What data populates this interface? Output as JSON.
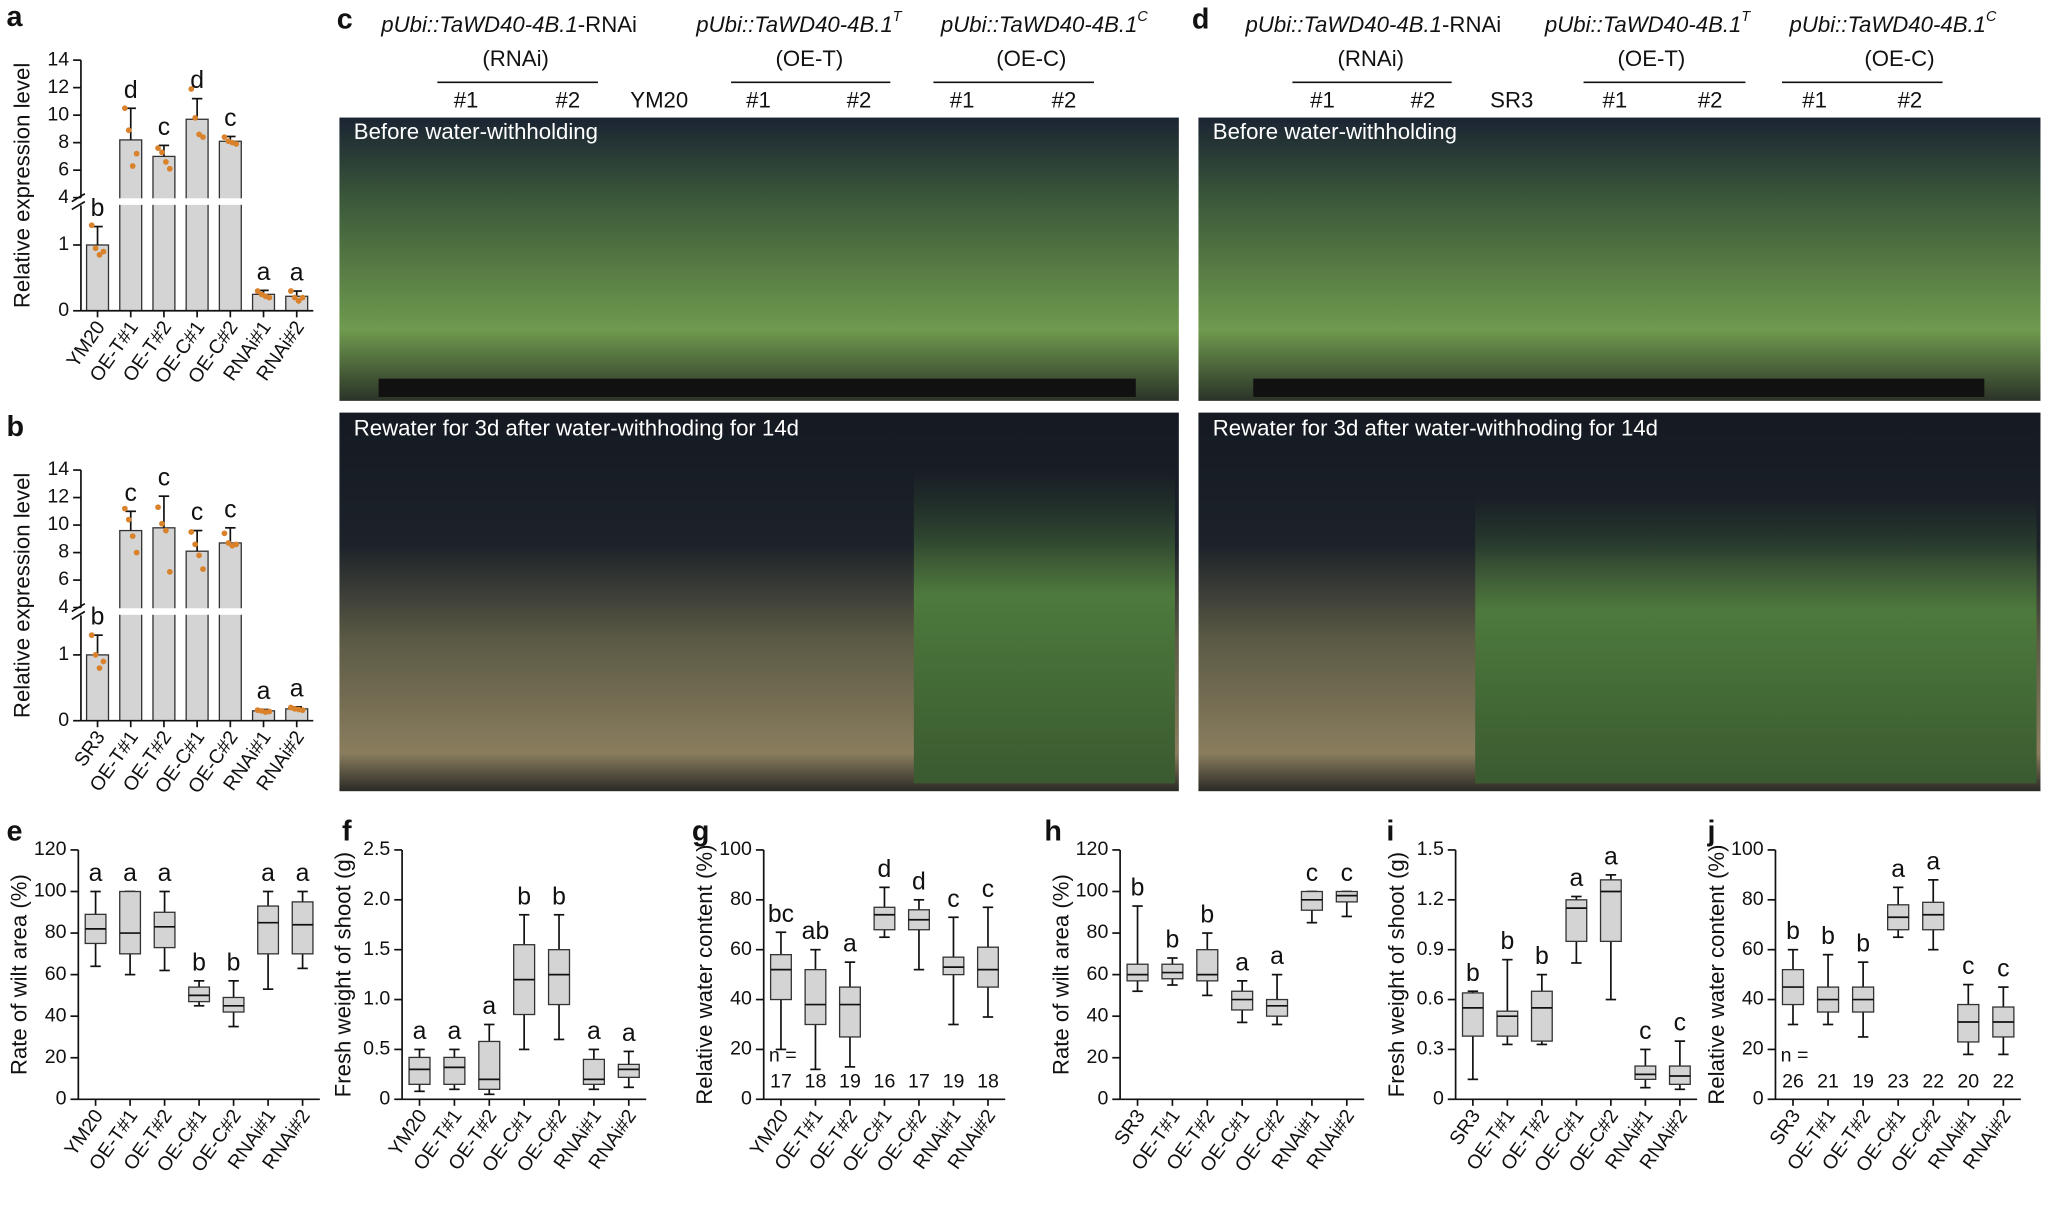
{
  "chart_data": [
    {
      "type": "bar",
      "panel": "a",
      "ylabel": "Relative expression level",
      "categories": [
        "YM20",
        "OE-T#1",
        "OE-T#2",
        "OE-C#1",
        "OE-C#2",
        "RNAi#1",
        "RNAi#2"
      ],
      "values": [
        1,
        8.2,
        7.0,
        9.7,
        8.1,
        0.25,
        0.22
      ],
      "errors": [
        0.28,
        2.3,
        0.8,
        1.5,
        0.35,
        0.06,
        0.08
      ],
      "points": [
        [
          1.3,
          0.95,
          0.85,
          0.9
        ],
        [
          10.5,
          8.9,
          6.3,
          7.2
        ],
        [
          7.6,
          7.3,
          6.6,
          6.1
        ],
        [
          11.9,
          9.8,
          8.6,
          8.4
        ],
        [
          8.4,
          8.1,
          8.0,
          7.9
        ],
        [
          0.3,
          0.25,
          0.22,
          0.2
        ],
        [
          0.3,
          0.2,
          0.15,
          0.2
        ]
      ],
      "letters": [
        "b",
        "d",
        "c",
        "d",
        "c",
        "a",
        "a"
      ],
      "ylim": [
        0,
        14
      ],
      "y_break": [
        1.6,
        4
      ],
      "yticks": [
        0,
        1,
        4,
        6,
        8,
        10,
        12,
        14
      ],
      "color": "#d4d4d4",
      "point_color": "#d9822b"
    },
    {
      "type": "bar",
      "panel": "b",
      "ylabel": "Relative expression level",
      "categories": [
        "SR3",
        "OE-T#1",
        "OE-T#2",
        "OE-C#1",
        "OE-C#2",
        "RNAi#1",
        "RNAi#2"
      ],
      "values": [
        1,
        9.6,
        9.8,
        8.1,
        8.7,
        0.15,
        0.18
      ],
      "errors": [
        0.3,
        1.4,
        2.3,
        1.5,
        1.1,
        0.02,
        0.03
      ],
      "points": [
        [
          1.3,
          1.0,
          0.8,
          0.9
        ],
        [
          11.2,
          10.4,
          9.2,
          8.0
        ],
        [
          11.3,
          10.1,
          9.6,
          6.6
        ],
        [
          9.5,
          8.6,
          7.8,
          6.8
        ],
        [
          9.4,
          8.7,
          8.5,
          8.6
        ],
        [
          0.16,
          0.15,
          0.13,
          0.14
        ],
        [
          0.2,
          0.18,
          0.17,
          0.16
        ]
      ],
      "letters": [
        "b",
        "c",
        "c",
        "c",
        "c",
        "a",
        "a"
      ],
      "ylim": [
        0,
        14
      ],
      "y_break": [
        1.6,
        4
      ],
      "yticks": [
        0,
        1,
        4,
        6,
        8,
        10,
        12,
        14
      ],
      "color": "#d4d4d4",
      "point_color": "#d9822b"
    },
    {
      "type": "box",
      "panel": "e",
      "ylabel": "Rate of wilt area (%)",
      "categories": [
        "YM20",
        "OE-T#1",
        "OE-T#2",
        "OE-C#1",
        "OE-C#2",
        "RNAi#1",
        "RNAi#2"
      ],
      "min": [
        64,
        60,
        62,
        45,
        35,
        53,
        63
      ],
      "q1": [
        75,
        70,
        73,
        47,
        42,
        70,
        70
      ],
      "median": [
        82,
        80,
        83,
        50,
        45,
        85,
        84
      ],
      "q3": [
        89,
        100,
        90,
        54,
        49,
        93,
        95
      ],
      "max": [
        100,
        100,
        100,
        57,
        57,
        100,
        100
      ],
      "letters": [
        "a",
        "a",
        "a",
        "b",
        "b",
        "a",
        "a"
      ],
      "ylim": [
        0,
        120
      ],
      "yticks": [
        0,
        20,
        40,
        60,
        80,
        100,
        120
      ],
      "color": "#d4d4d4"
    },
    {
      "type": "box",
      "panel": "f",
      "ylabel": "Fresh weight of shoot (g)",
      "categories": [
        "YM20",
        "OE-T#1",
        "OE-T#2",
        "OE-C#1",
        "OE-C#2",
        "RNAi#1",
        "RNAi#2"
      ],
      "min": [
        0.08,
        0.1,
        0.05,
        0.5,
        0.6,
        0.1,
        0.12
      ],
      "q1": [
        0.15,
        0.15,
        0.1,
        0.85,
        0.95,
        0.15,
        0.22
      ],
      "median": [
        0.3,
        0.32,
        0.2,
        1.2,
        1.25,
        0.2,
        0.3
      ],
      "q3": [
        0.42,
        0.42,
        0.58,
        1.55,
        1.5,
        0.4,
        0.35
      ],
      "max": [
        0.5,
        0.5,
        0.75,
        1.85,
        1.85,
        0.5,
        0.48
      ],
      "letters": [
        "a",
        "a",
        "a",
        "b",
        "b",
        "a",
        "a"
      ],
      "ylim": [
        0,
        2.5
      ],
      "yticks": [
        0,
        0.5,
        {
          "value": 1,
          "label": "1.0"
        },
        1.5,
        {
          "value": 2,
          "label": "2.0"
        },
        2.5
      ],
      "color": "#d4d4d4"
    },
    {
      "type": "box",
      "panel": "g",
      "ylabel": "Relative water content (%)",
      "categories": [
        "YM20",
        "OE-T#1",
        "OE-T#2",
        "OE-C#1",
        "OE-C#2",
        "RNAi#1",
        "RNAi#2"
      ],
      "min": [
        20,
        12,
        13,
        65,
        52,
        30,
        33
      ],
      "q1": [
        40,
        30,
        25,
        68,
        68,
        50,
        45
      ],
      "median": [
        52,
        38,
        38,
        74,
        72,
        53,
        52
      ],
      "q3": [
        58,
        52,
        45,
        77,
        76,
        57,
        61
      ],
      "max": [
        67,
        60,
        55,
        85,
        80,
        73,
        77
      ],
      "letters": [
        "bc",
        "ab",
        "a",
        "d",
        "d",
        "c",
        "c"
      ],
      "n_label": "n =",
      "n": [
        17,
        18,
        19,
        16,
        17,
        19,
        18
      ],
      "ylim": [
        0,
        100
      ],
      "yticks": [
        0,
        20,
        40,
        60,
        80,
        100
      ],
      "color": "#d4d4d4"
    },
    {
      "type": "box",
      "panel": "h",
      "ylabel": "Rate of wilt area (%)",
      "categories": [
        "SR3",
        "OE-T#1",
        "OE-T#2",
        "OE-C#1",
        "OE-C#2",
        "RNAi#1",
        "RNAi#2"
      ],
      "min": [
        52,
        55,
        50,
        37,
        36,
        85,
        88
      ],
      "q1": [
        57,
        58,
        57,
        43,
        40,
        91,
        95
      ],
      "median": [
        60,
        61,
        60,
        48,
        45,
        96,
        98
      ],
      "q3": [
        65,
        65,
        72,
        52,
        48,
        100,
        100
      ],
      "max": [
        93,
        68,
        80,
        57,
        60,
        100,
        100
      ],
      "letters": [
        "b",
        "b",
        "b",
        "a",
        "a",
        "c",
        "c"
      ],
      "ylim": [
        0,
        120
      ],
      "yticks": [
        0,
        20,
        40,
        60,
        80,
        100,
        120
      ],
      "color": "#d4d4d4"
    },
    {
      "type": "box",
      "panel": "i",
      "ylabel": "Fresh weight of shoot (g)",
      "categories": [
        "SR3",
        "OE-T#1",
        "OE-T#2",
        "OE-C#1",
        "OE-C#2",
        "RNAi#1",
        "RNAi#2"
      ],
      "min": [
        0.12,
        0.33,
        0.33,
        0.82,
        0.6,
        0.07,
        0.06
      ],
      "q1": [
        0.38,
        0.38,
        0.35,
        0.95,
        0.95,
        0.12,
        0.09
      ],
      "median": [
        0.55,
        0.5,
        0.55,
        1.15,
        1.25,
        0.15,
        0.14
      ],
      "q3": [
        0.64,
        0.53,
        0.65,
        1.2,
        1.32,
        0.2,
        0.2
      ],
      "max": [
        0.65,
        0.84,
        0.75,
        1.22,
        1.35,
        0.3,
        0.35
      ],
      "letters": [
        "b",
        "b",
        "b",
        "a",
        "a",
        "c",
        "c"
      ],
      "ylim": [
        0,
        1.5
      ],
      "yticks": [
        0,
        0.3,
        0.6,
        0.9,
        1.2,
        1.5
      ],
      "color": "#d4d4d4"
    },
    {
      "type": "box",
      "panel": "j",
      "ylabel": "Relative water content (%)",
      "categories": [
        "SR3",
        "OE-T#1",
        "OE-T#2",
        "OE-C#1",
        "OE-C#2",
        "RNAi#1",
        "RNAi#2"
      ],
      "min": [
        30,
        30,
        25,
        65,
        60,
        18,
        18
      ],
      "q1": [
        38,
        35,
        35,
        68,
        68,
        23,
        25
      ],
      "median": [
        45,
        40,
        40,
        73,
        74,
        31,
        31
      ],
      "q3": [
        52,
        45,
        45,
        78,
        79,
        38,
        37
      ],
      "max": [
        60,
        58,
        55,
        85,
        88,
        46,
        45
      ],
      "letters": [
        "b",
        "b",
        "b",
        "a",
        "a",
        "c",
        "c"
      ],
      "n_label": "n =",
      "n": [
        26,
        21,
        19,
        23,
        22,
        20,
        22
      ],
      "ylim": [
        0,
        100
      ],
      "yticks": [
        0,
        20,
        40,
        60,
        80,
        100
      ],
      "color": "#d4d4d4"
    }
  ],
  "photo_panels": [
    {
      "panel": "c",
      "control": "YM20",
      "top_caption": "Before water-withholding",
      "bottom_caption": "Rewater for 3d after water-withhoding for 14d",
      "groups": [
        {
          "construct": "pUbi::TaWD40-4B.1",
          "suffix": "-RNAi",
          "abbr": "(RNAi)",
          "lines": [
            "#1",
            "#2"
          ]
        },
        {
          "construct": "pUbi::TaWD40-4B.1",
          "superscript": "T",
          "abbr": "(OE-T)",
          "lines": [
            "#1",
            "#2"
          ]
        },
        {
          "construct": "pUbi::TaWD40-4B.1",
          "superscript": "C",
          "abbr": "(OE-C)",
          "lines": [
            "#1",
            "#2"
          ]
        }
      ]
    },
    {
      "panel": "d",
      "control": "SR3",
      "top_caption": "Before water-withholding",
      "bottom_caption": "Rewater for 3d after water-withhoding for 14d",
      "groups": [
        {
          "construct": "pUbi::TaWD40-4B.1",
          "suffix": "-RNAi",
          "abbr": "(RNAi)",
          "lines": [
            "#1",
            "#2"
          ]
        },
        {
          "construct": "pUbi::TaWD40-4B.1",
          "superscript": "T",
          "abbr": "(OE-T)",
          "lines": [
            "#1",
            "#2"
          ]
        },
        {
          "construct": "pUbi::TaWD40-4B.1",
          "superscript": "C",
          "abbr": "(OE-C)",
          "lines": [
            "#1",
            "#2"
          ]
        }
      ]
    }
  ]
}
